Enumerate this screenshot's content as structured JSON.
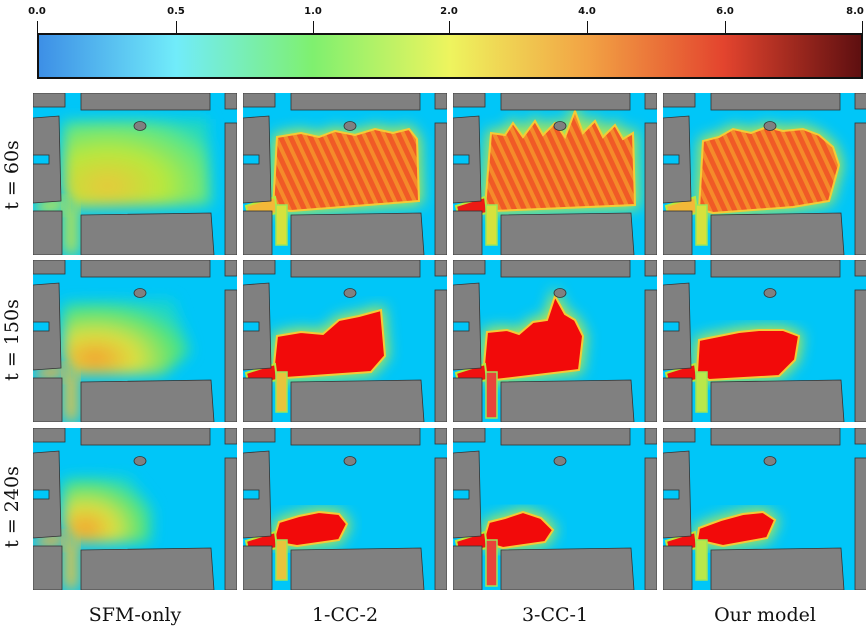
{
  "chart_data": {
    "type": "heatmap",
    "colorbar": {
      "ticks": [
        "0.0",
        "0.5",
        "1.0",
        "2.0",
        "4.0",
        "6.0",
        "8.0"
      ],
      "colors": [
        "#3d8fe6",
        "#71ecfa",
        "#7ff06f",
        "#eef45e",
        "#f2a344",
        "#e3442e",
        "#5e0f10"
      ]
    },
    "rows": [
      "t = 60s",
      "t = 150s",
      "t = 240s"
    ],
    "columns": [
      "SFM-only",
      "1-CC-2",
      "3-CC-1",
      "Our model"
    ],
    "background_color": "#00c6f8",
    "obstacle_color": "#808080"
  }
}
